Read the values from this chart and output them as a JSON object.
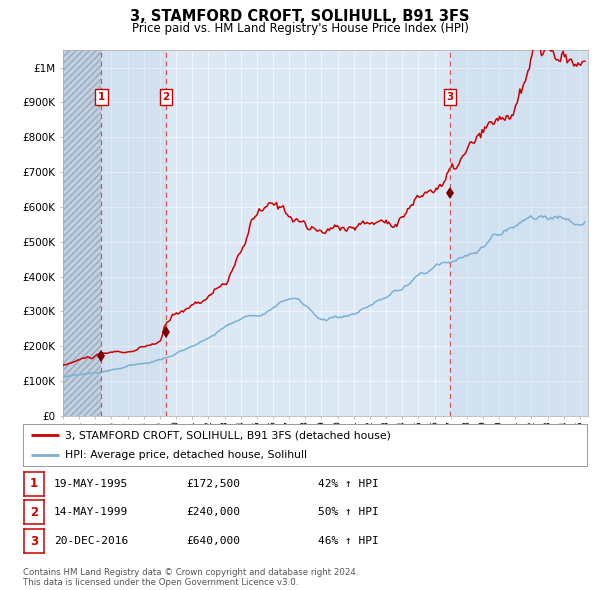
{
  "title": "3, STAMFORD CROFT, SOLIHULL, B91 3FS",
  "subtitle": "Price paid vs. HM Land Registry's House Price Index (HPI)",
  "plot_bg_color": "#dce9f5",
  "ylim": [
    0,
    1050000
  ],
  "yticks": [
    0,
    100000,
    200000,
    300000,
    400000,
    500000,
    600000,
    700000,
    800000,
    900000,
    1000000
  ],
  "ytick_labels": [
    "£0",
    "£100K",
    "£200K",
    "£300K",
    "£400K",
    "£500K",
    "£600K",
    "£700K",
    "£800K",
    "£900K",
    "£1M"
  ],
  "xlim_start": 1993.0,
  "xlim_end": 2025.5,
  "purchases": [
    {
      "label": "1",
      "date_num": 1995.37,
      "price": 172500
    },
    {
      "label": "2",
      "date_num": 1999.37,
      "price": 240000
    },
    {
      "label": "3",
      "date_num": 2016.96,
      "price": 640000
    }
  ],
  "legend_line1": "3, STAMFORD CROFT, SOLIHULL, B91 3FS (detached house)",
  "legend_line2": "HPI: Average price, detached house, Solihull",
  "table_rows": [
    [
      "1",
      "19-MAY-1995",
      "£172,500",
      "42% ↑ HPI"
    ],
    [
      "2",
      "14-MAY-1999",
      "£240,000",
      "50% ↑ HPI"
    ],
    [
      "3",
      "20-DEC-2016",
      "£640,000",
      "46% ↑ HPI"
    ]
  ],
  "footer": "Contains HM Land Registry data © Crown copyright and database right 2024.\nThis data is licensed under the Open Government Licence v3.0.",
  "line_color_red": "#cc0000",
  "line_color_blue": "#7bafd4",
  "dashed_line_color": "#e05050"
}
